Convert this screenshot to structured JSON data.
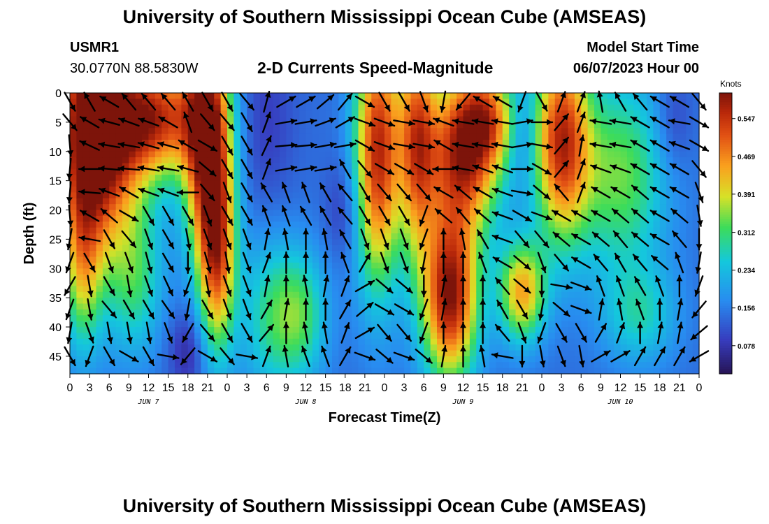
{
  "header": {
    "title": "University of Southern Mississippi Ocean Cube (AMSEAS)",
    "station": "USMR1",
    "coords": "30.0770N  88.5830W",
    "subtitle": "2-D Currents Speed-Magnitude",
    "model_start_label": "Model Start Time",
    "model_start_value": "06/07/2023 Hour 00"
  },
  "footer": {
    "title": "University of Southern Mississippi Ocean Cube (AMSEAS)"
  },
  "chart_data": {
    "type": "heatmap",
    "title": "2-D Currents Speed-Magnitude",
    "xlabel": "Forecast Time(Z)",
    "ylabel": "Depth (ft)",
    "ylim": [
      0,
      48
    ],
    "y_ticks": [
      0,
      5,
      10,
      15,
      20,
      25,
      30,
      35,
      40,
      45
    ],
    "x_range_hours": [
      0,
      96
    ],
    "x_tick_labels": [
      "0",
      "3",
      "6",
      "9",
      "12",
      "15",
      "18",
      "21",
      "0",
      "3",
      "6",
      "9",
      "12",
      "15",
      "18",
      "21",
      "0",
      "3",
      "6",
      "9",
      "12",
      "15",
      "18",
      "21",
      "0",
      "3",
      "6",
      "9",
      "12",
      "15",
      "18",
      "21",
      "0"
    ],
    "day_labels": [
      {
        "hour": 12,
        "label": "JUN 7"
      },
      {
        "hour": 36,
        "label": "JUN 8"
      },
      {
        "hour": 60,
        "label": "JUN 9"
      },
      {
        "hour": 84,
        "label": "JUN 10"
      }
    ],
    "colorbar": {
      "units": "Knots",
      "min": 0.02,
      "max": 0.6,
      "ticks": [
        0.078,
        0.156,
        0.234,
        0.312,
        0.391,
        0.469,
        0.547
      ],
      "tick_labels": [
        "0.078",
        "0.156",
        "0.234",
        "0.312",
        "0.391",
        "0.469",
        "0.547"
      ]
    },
    "depth_levels_ft": [
      1.5,
      5,
      9,
      13,
      17,
      21,
      25,
      29,
      33,
      37,
      41,
      45
    ],
    "blobs": [
      {
        "t": 3,
        "d": 2,
        "st": 4,
        "sd": 18,
        "amp": 0.42
      },
      {
        "t": 6,
        "d": 12,
        "st": 5,
        "sd": 10,
        "amp": 0.18
      },
      {
        "t": 13,
        "d": 4,
        "st": 5,
        "sd": 7,
        "amp": 0.38
      },
      {
        "t": 2,
        "d": 30,
        "st": 2,
        "sd": 10,
        "amp": 0.18
      },
      {
        "t": 10,
        "d": 32,
        "st": 3,
        "sd": 9,
        "amp": 0.15
      },
      {
        "t": 18,
        "d": 44,
        "st": 2,
        "sd": 5,
        "amp": -0.08
      },
      {
        "t": 21,
        "d": 8,
        "st": 2.5,
        "sd": 14,
        "amp": 0.45
      },
      {
        "t": 22.5,
        "d": 28,
        "st": 2,
        "sd": 12,
        "amp": 0.32
      },
      {
        "t": 30,
        "d": 5,
        "st": 3,
        "sd": 12,
        "amp": -0.05
      },
      {
        "t": 35,
        "d": 38,
        "st": 3,
        "sd": 8,
        "amp": 0.18
      },
      {
        "t": 30,
        "d": 38,
        "st": 3,
        "sd": 10,
        "amp": 0.12
      },
      {
        "t": 42,
        "d": 20,
        "st": 2,
        "sd": 6,
        "amp": -0.06
      },
      {
        "t": 47,
        "d": 10,
        "st": 2.5,
        "sd": 16,
        "amp": 0.42
      },
      {
        "t": 53,
        "d": 8,
        "st": 2,
        "sd": 14,
        "amp": 0.32
      },
      {
        "t": 58,
        "d": 35,
        "st": 3,
        "sd": 10,
        "amp": 0.45
      },
      {
        "t": 60,
        "d": 10,
        "st": 4,
        "sd": 10,
        "amp": 0.42
      },
      {
        "t": 64,
        "d": 4,
        "st": 3,
        "sd": 6,
        "amp": 0.22
      },
      {
        "t": 69,
        "d": 34,
        "st": 2.5,
        "sd": 6,
        "amp": 0.3
      },
      {
        "t": 75,
        "d": 8,
        "st": 3,
        "sd": 12,
        "amp": 0.4
      },
      {
        "t": 84,
        "d": 14,
        "st": 5,
        "sd": 12,
        "amp": 0.2
      },
      {
        "t": 87,
        "d": 38,
        "st": 4,
        "sd": 6,
        "amp": 0.12
      },
      {
        "t": 69,
        "d": 7,
        "st": 1.5,
        "sd": 5,
        "amp": -0.06
      },
      {
        "t": 92,
        "d": 5,
        "st": 2,
        "sd": 6,
        "amp": -0.06
      }
    ],
    "base_speed": 0.14,
    "vector_columns": [
      {
        "hour": 0,
        "angles": [
          150,
          140,
          175,
          185,
          185,
          175,
          190,
          200,
          210,
          200,
          190,
          150
        ]
      },
      {
        "hour": 3,
        "angles": [
          330,
          300,
          295,
          270,
          275,
          300,
          280,
          150,
          170,
          170,
          160,
          200
        ]
      },
      {
        "hour": 6,
        "angles": [
          300,
          285,
          280,
          275,
          290,
          310,
          150,
          160,
          150,
          140,
          170,
          150
        ]
      },
      {
        "hour": 9,
        "angles": [
          320,
          290,
          280,
          275,
          300,
          120,
          140,
          160,
          170,
          150,
          170,
          120
        ]
      },
      {
        "hour": 12,
        "angles": [
          320,
          290,
          285,
          280,
          290,
          150,
          160,
          165,
          160,
          150,
          170,
          150
        ]
      },
      {
        "hour": 15,
        "angles": [
          320,
          300,
          285,
          280,
          290,
          150,
          150,
          150,
          155,
          145,
          160,
          100
        ]
      },
      {
        "hour": 18,
        "angles": [
          330,
          340,
          300,
          285,
          270,
          150,
          170,
          180,
          200,
          190,
          210,
          220
        ]
      },
      {
        "hour": 21,
        "angles": [
          150,
          140,
          120,
          130,
          140,
          160,
          160,
          165,
          170,
          150,
          140,
          120
        ]
      },
      {
        "hour": 24,
        "angles": [
          150,
          140,
          150,
          150,
          160,
          150,
          160,
          170,
          160,
          160,
          150,
          140
        ]
      },
      {
        "hour": 27,
        "angles": [
          140,
          150,
          150,
          150,
          150,
          150,
          160,
          160,
          160,
          160,
          150,
          100
        ]
      },
      {
        "hour": 30,
        "angles": [
          15,
          20,
          25,
          20,
          330,
          340,
          10,
          20,
          10,
          30,
          40,
          20
        ]
      },
      {
        "hour": 33,
        "angles": [
          60,
          80,
          85,
          80,
          340,
          340,
          350,
          0,
          0,
          10,
          0,
          350
        ]
      },
      {
        "hour": 36,
        "angles": [
          60,
          80,
          85,
          80,
          340,
          330,
          0,
          0,
          350,
          0,
          350,
          340
        ]
      },
      {
        "hour": 39,
        "angles": [
          50,
          70,
          80,
          80,
          330,
          330,
          350,
          0,
          10,
          0,
          350,
          340
        ]
      },
      {
        "hour": 42,
        "angles": [
          40,
          60,
          80,
          330,
          320,
          320,
          330,
          340,
          20,
          30,
          20,
          30
        ]
      },
      {
        "hour": 45,
        "angles": [
          120,
          110,
          120,
          140,
          150,
          150,
          160,
          30,
          60,
          50,
          60,
          110
        ]
      },
      {
        "hour": 48,
        "angles": [
          150,
          110,
          110,
          120,
          140,
          150,
          160,
          160,
          130,
          120,
          140,
          130
        ]
      },
      {
        "hour": 51,
        "angles": [
          150,
          100,
          100,
          120,
          140,
          150,
          160,
          160,
          130,
          120,
          140,
          110
        ]
      },
      {
        "hour": 54,
        "angles": [
          160,
          100,
          100,
          120,
          140,
          200,
          200,
          190,
          180,
          200,
          200,
          130
        ]
      },
      {
        "hour": 57,
        "angles": [
          190,
          290,
          300,
          270,
          300,
          310,
          0,
          0,
          10,
          10,
          0,
          10
        ]
      },
      {
        "hour": 60,
        "angles": [
          220,
          280,
          280,
          280,
          310,
          320,
          350,
          0,
          0,
          0,
          0,
          0
        ]
      },
      {
        "hour": 63,
        "angles": [
          300,
          280,
          280,
          290,
          300,
          310,
          330,
          340,
          0,
          0,
          0,
          350
        ]
      },
      {
        "hour": 66,
        "angles": [
          300,
          280,
          280,
          290,
          290,
          290,
          290,
          300,
          320,
          330,
          320,
          280
        ]
      },
      {
        "hour": 69,
        "angles": [
          200,
          80,
          80,
          90,
          100,
          120,
          140,
          130,
          130,
          150,
          160,
          180
        ]
      },
      {
        "hour": 72,
        "angles": [
          150,
          90,
          100,
          120,
          130,
          110,
          140,
          160,
          180,
          190,
          200,
          170
        ]
      },
      {
        "hour": 75,
        "angles": [
          20,
          40,
          40,
          40,
          320,
          300,
          310,
          140,
          100,
          130,
          150,
          160
        ]
      },
      {
        "hour": 78,
        "angles": [
          20,
          20,
          10,
          20,
          20,
          300,
          300,
          300,
          110,
          110,
          150,
          170
        ]
      },
      {
        "hour": 81,
        "angles": [
          350,
          280,
          280,
          290,
          300,
          300,
          310,
          320,
          340,
          10,
          30,
          60
        ]
      },
      {
        "hour": 84,
        "angles": [
          330,
          280,
          280,
          290,
          300,
          310,
          320,
          330,
          340,
          350,
          20,
          60
        ]
      },
      {
        "hour": 87,
        "angles": [
          320,
          300,
          300,
          300,
          310,
          310,
          310,
          320,
          330,
          340,
          0,
          30
        ]
      },
      {
        "hour": 90,
        "angles": [
          300,
          300,
          300,
          300,
          300,
          300,
          300,
          310,
          340,
          0,
          10,
          30
        ]
      },
      {
        "hour": 93,
        "angles": [
          300,
          280,
          290,
          300,
          300,
          310,
          320,
          340,
          0,
          10,
          10,
          30
        ]
      },
      {
        "hour": 96,
        "angles": [
          140,
          120,
          120,
          140,
          160,
          170,
          180,
          190,
          200,
          220,
          230,
          240
        ]
      }
    ]
  }
}
